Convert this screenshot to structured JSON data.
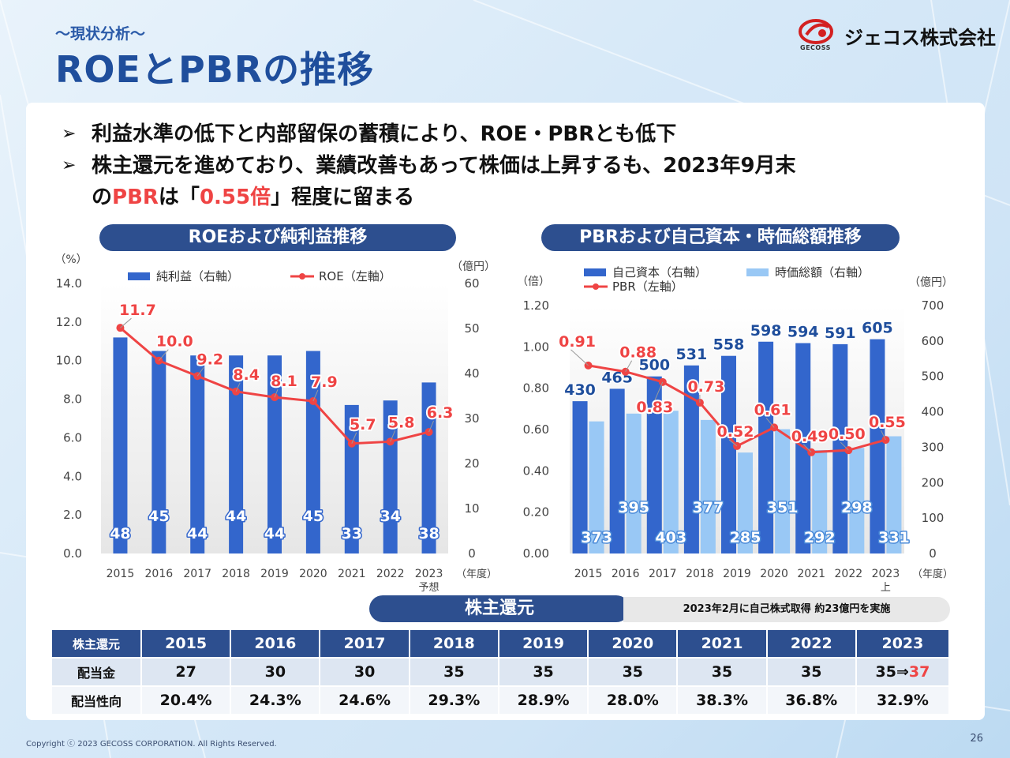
{
  "header": {
    "subtitle": "〜現状分析〜",
    "title": "ROEとPBRの推移",
    "company": "ジェコス株式会社",
    "logo_text": "GECOSS"
  },
  "bullets": [
    {
      "text": "利益水準の低下と内部留保の蓄積により、ROE・PBRとも低下"
    },
    {
      "pre": "株主還元を進めており、業績改善もあって株価は上昇するも、2023年9月末",
      "line2_a": "の",
      "line2_red1": "PBR",
      "line2_b": "は「",
      "line2_red2": "0.55倍",
      "line2_c": "」程度に留まる"
    }
  ],
  "chart_data": [
    {
      "type": "bar+line",
      "title": "ROEおよび純利益推移",
      "categories": [
        "2015",
        "2016",
        "2017",
        "2018",
        "2019",
        "2020",
        "2021",
        "2022",
        "2023"
      ],
      "category_note": {
        "index": 8,
        "text": "予想"
      },
      "x_unit": "（年度）",
      "left_axis": {
        "unit": "（%）",
        "ticks": [
          "0.0",
          "2.0",
          "4.0",
          "6.0",
          "8.0",
          "10.0",
          "12.0",
          "14.0"
        ],
        "range": [
          0,
          14
        ]
      },
      "right_axis": {
        "unit": "（億円）",
        "ticks": [
          "0",
          "10",
          "20",
          "30",
          "40",
          "50",
          "60"
        ],
        "range": [
          0,
          60
        ]
      },
      "series": [
        {
          "name": "純利益（右軸）",
          "kind": "bar",
          "axis": "right",
          "color": "#3366cc",
          "values": [
            48,
            45,
            44,
            44,
            44,
            45,
            33,
            34,
            38
          ]
        },
        {
          "name": "ROE（左軸）",
          "kind": "line",
          "axis": "left",
          "color": "#ef4444",
          "values": [
            11.7,
            10.0,
            9.2,
            8.4,
            8.1,
            7.9,
            5.7,
            5.8,
            6.3
          ],
          "labels": [
            "11.7",
            "10.0",
            "9.2",
            "8.4",
            "8.1",
            "7.9",
            "5.7",
            "5.8",
            "6.3"
          ]
        }
      ],
      "legend": [
        {
          "label": "純利益（右軸）",
          "kind": "bar",
          "color": "#3366cc"
        },
        {
          "label": "ROE（左軸）",
          "kind": "line",
          "color": "#ef4444"
        }
      ]
    },
    {
      "type": "bar+line",
      "title": "PBRおよび自己資本・時価総額推移",
      "categories": [
        "2015",
        "2016",
        "2017",
        "2018",
        "2019",
        "2020",
        "2021",
        "2022",
        "2023"
      ],
      "category_note": {
        "index": 8,
        "text": "上"
      },
      "x_unit": "（年度）",
      "left_axis": {
        "unit": "（倍）",
        "ticks": [
          "0.00",
          "0.20",
          "0.40",
          "0.60",
          "0.80",
          "1.00",
          "1.20"
        ],
        "range": [
          0,
          1.2
        ]
      },
      "right_axis": {
        "unit": "（億円）",
        "ticks": [
          "0",
          "100",
          "200",
          "300",
          "400",
          "500",
          "600",
          "700"
        ],
        "range": [
          0,
          700
        ]
      },
      "series": [
        {
          "name": "自己資本（右軸）",
          "kind": "bar",
          "axis": "right",
          "color": "#3366cc",
          "values": [
            430,
            465,
            500,
            531,
            558,
            598,
            594,
            591,
            605
          ]
        },
        {
          "name": "時価総額（右軸）",
          "kind": "bar",
          "axis": "right",
          "color": "#99c8f5",
          "values": [
            373,
            395,
            403,
            377,
            285,
            351,
            292,
            298,
            331
          ]
        },
        {
          "name": "PBR（左軸）",
          "kind": "line",
          "axis": "left",
          "color": "#ef4444",
          "values": [
            0.91,
            0.88,
            0.83,
            0.73,
            0.52,
            0.61,
            0.49,
            0.5,
            0.55
          ],
          "labels": [
            "0.91",
            "0.88",
            "0.83",
            "0.73",
            "0.52",
            "0.61",
            "0.49",
            "0.50",
            "0.55"
          ]
        }
      ],
      "legend": [
        {
          "label": "自己資本（右軸）",
          "kind": "bar",
          "color": "#3366cc"
        },
        {
          "label": "時価総額（右軸）",
          "kind": "bar",
          "color": "#99c8f5"
        },
        {
          "label": "PBR（左軸）",
          "kind": "line",
          "color": "#ef4444"
        }
      ]
    }
  ],
  "shareholder": {
    "title": "株主還元",
    "buyback_note": "2023年2月に自己株式取得 約23億円を実施",
    "table": {
      "header": [
        "株主還元",
        "2015",
        "2016",
        "2017",
        "2018",
        "2019",
        "2020",
        "2021",
        "2022",
        "2023"
      ],
      "rows": [
        {
          "label": "配当金",
          "values": [
            "27",
            "30",
            "30",
            "35",
            "35",
            "35",
            "35",
            "35",
            "35⇒"
          ],
          "last_red": "37"
        },
        {
          "label": "配当性向",
          "values": [
            "20.4%",
            "24.3%",
            "24.6%",
            "29.3%",
            "28.9%",
            "28.0%",
            "38.3%",
            "36.8%",
            "32.9%"
          ]
        }
      ]
    }
  },
  "footer": {
    "copyright": "Copyright ⓒ 2023 GECOSS CORPORATION. All Rights Reserved.",
    "page": "26"
  }
}
